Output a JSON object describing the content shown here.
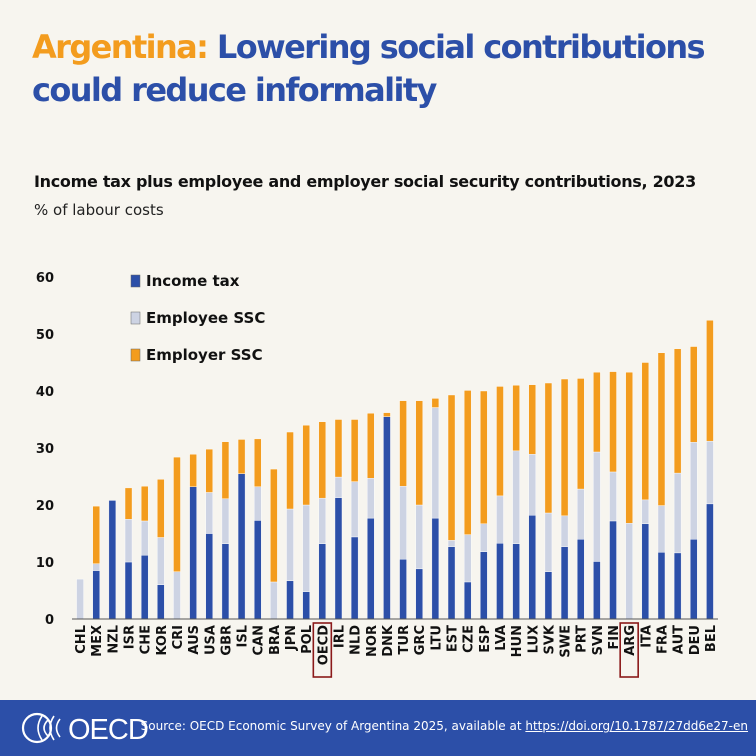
{
  "header": {
    "title_country": "Argentina:",
    "title_rest": " Lowering social contributions could reduce informality",
    "subtitle": "Income tax plus employee and employer social security contributions, 2023",
    "unit": "% of labour costs"
  },
  "footer": {
    "logo_text": "OECD",
    "source_prefix": "Source: OECD Economic Survey of Argentina 2025, available at ",
    "source_link": "https://doi.org/10.1787/27dd6e27-en"
  },
  "colors": {
    "income_tax": "#2c4fa8",
    "employee_ssc": "#cdd3e3",
    "employer_ssc": "#f39c1e",
    "highlight": "#8b1a1a"
  },
  "chart_data": {
    "type": "bar",
    "stacked": true,
    "ylim": [
      0,
      60
    ],
    "yticks": [
      0,
      10,
      20,
      30,
      40,
      50,
      60
    ],
    "legend_position": "top-left",
    "highlighted": [
      "OECD",
      "ARG"
    ],
    "categories": [
      "CHL",
      "MEX",
      "NZL",
      "ISR",
      "CHE",
      "KOR",
      "CRI",
      "AUS",
      "USA",
      "GBR",
      "ISL",
      "CAN",
      "BRA",
      "JPN",
      "POL",
      "OECD",
      "IRL",
      "NLD",
      "NOR",
      "DNK",
      "TUR",
      "GRC",
      "LTU",
      "EST",
      "CZE",
      "ESP",
      "LVA",
      "HUN",
      "LUX",
      "SVK",
      "SWE",
      "PRT",
      "SVN",
      "FIN",
      "ARG",
      "ITA",
      "FRA",
      "AUT",
      "DEU",
      "BEL"
    ],
    "series": [
      {
        "name": "Income tax",
        "values": [
          0,
          8.5,
          20.8,
          10,
          11.2,
          6,
          0,
          23.2,
          15,
          13.2,
          25.5,
          17.3,
          0,
          6.7,
          4.8,
          13.2,
          21.3,
          14.4,
          17.7,
          35.5,
          10.5,
          8.8,
          17.7,
          12.7,
          6.5,
          11.8,
          13.3,
          13.2,
          18.2,
          8.3,
          12.7,
          14,
          10.1,
          17.2,
          0,
          16.7,
          11.7,
          11.6,
          14,
          20.2
        ]
      },
      {
        "name": "Employee SSC",
        "values": [
          7,
          1.2,
          0,
          7.5,
          6,
          8.3,
          8.3,
          0,
          7.2,
          7.9,
          0,
          5.9,
          6.5,
          12.6,
          15.2,
          8,
          3.6,
          9.7,
          7,
          0,
          12.8,
          11.2,
          19.4,
          1.1,
          8.3,
          4.9,
          8.3,
          16.3,
          10.7,
          10.3,
          5.4,
          8.8,
          19.2,
          8.6,
          16.8,
          4.2,
          8.2,
          14,
          17,
          11
        ]
      },
      {
        "name": "Employer SSC",
        "values": [
          0,
          10.1,
          0,
          5.5,
          6.1,
          10.2,
          20.1,
          5.7,
          7.6,
          10.0,
          6.0,
          8.4,
          19.8,
          13.5,
          14.0,
          13.4,
          10.1,
          10.9,
          11.4,
          0.7,
          15.0,
          18.3,
          1.6,
          25.5,
          25.3,
          23.3,
          19.2,
          11.5,
          12.2,
          22.8,
          24.0,
          19.4,
          14.0,
          17.6,
          26.5,
          24.1,
          26.8,
          21.8,
          16.8,
          21.2
        ]
      }
    ],
    "title": "",
    "xlabel": "",
    "ylabel": ""
  }
}
